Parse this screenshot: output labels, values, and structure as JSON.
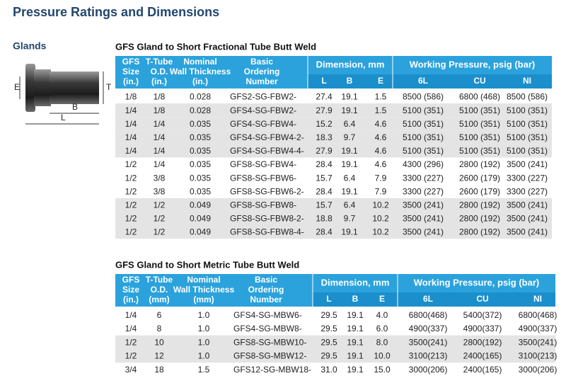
{
  "header": {
    "title": "Pressure Ratings and Dimensions",
    "section": "Glands"
  },
  "diagram": {
    "labels": [
      "E",
      "T",
      "B",
      "L"
    ]
  },
  "tables": [
    {
      "title": "GFS Gland to Short Fractional Tube Butt Weld",
      "columns": [
        [
          "GFS",
          "Size",
          "(in.)"
        ],
        [
          "T-Tube",
          "O.D.",
          "(in.)"
        ],
        [
          "Nominal",
          "Wall Thickness",
          "(in.)"
        ],
        [
          "Basic",
          "Ordering",
          "Number"
        ]
      ],
      "group_headers": [
        "Dimension, mm",
        "Working Pressure, psig (bar)"
      ],
      "sub_headers": [
        "L",
        "B",
        "E",
        "6L",
        "CU",
        "NI"
      ],
      "shaded_rows": [
        1,
        2,
        3,
        4,
        8,
        9,
        10
      ],
      "rows": [
        [
          "1/8",
          "1/8",
          "0.028",
          "GFS2-SG-FBW2-",
          "27.4",
          "19.1",
          "1.5",
          "8500 (586)",
          "6800 (468)",
          "8500 (586)"
        ],
        [
          "1/4",
          "1/8",
          "0.028",
          "GFS4-SG-FBW2-",
          "27.9",
          "19.1",
          "1.5",
          "5100 (351)",
          "5100 (351)",
          "5100 (351)"
        ],
        [
          "1/4",
          "1/4",
          "0.035",
          "GFS4-SG-FBW4-",
          "15.2",
          "6.4",
          "4.6",
          "5100 (351)",
          "5100 (351)",
          "5100 (351)"
        ],
        [
          "1/4",
          "1/4",
          "0.035",
          "GFS4-SG-FBW4-2-",
          "18.3",
          "9.7",
          "4.6",
          "5100 (351)",
          "5100 (351)",
          "5100 (351)"
        ],
        [
          "1/4",
          "1/4",
          "0.035",
          "GFS4-SG-FBW4-4-",
          "27.9",
          "19.1",
          "4.6",
          "5100 (351)",
          "5100 (351)",
          "5100 (351)"
        ],
        [
          "1/2",
          "1/4",
          "0.035",
          "GFS8-SG-FBW4-",
          "28.4",
          "19.1",
          "4.6",
          "4300 (296)",
          "2800 (192)",
          "3500 (241)"
        ],
        [
          "1/2",
          "3/8",
          "0.035",
          "GFS8-SG-FBW6-",
          "15.7",
          "6.4",
          "7.9",
          "3300 (227)",
          "2600 (179)",
          "3300 (227)"
        ],
        [
          "1/2",
          "3/8",
          "0.035",
          "GFS8-SG-FBW6-2-",
          "28.4",
          "19.1",
          "7.9",
          "3300 (227)",
          "2600 (179)",
          "3300 (227)"
        ],
        [
          "1/2",
          "1/2",
          "0.049",
          "GFS8-SG-FBW8-",
          "15.7",
          "6.4",
          "10.2",
          "3500 (241)",
          "2800 (192)",
          "3500 (241)"
        ],
        [
          "1/2",
          "1/2",
          "0.049",
          "GFS8-SG-FBW8-2-",
          "18.8",
          "9.7",
          "10.2",
          "3500 (241)",
          "2800 (192)",
          "3500 (241)"
        ],
        [
          "1/2",
          "1/2",
          "0.049",
          "GFS8-SG-FBW8-4-",
          "28.4",
          "19.1",
          "10.2",
          "3500 (241)",
          "2800 (192)",
          "3500 (241)"
        ]
      ]
    },
    {
      "title": "GFS Gland to Short Metric Tube Butt Weld",
      "columns": [
        [
          "GFS",
          "Size",
          "(in.)"
        ],
        [
          "T-Tube",
          "O.D.",
          "(mm)"
        ],
        [
          "Nominal",
          "Wall Thickness",
          "(mm)"
        ],
        [
          "Basic",
          "Ordering",
          "Number"
        ]
      ],
      "group_headers": [
        "Dimension, mm",
        "Working Pressure, psig (bar)"
      ],
      "sub_headers": [
        "L",
        "B",
        "E",
        "6L",
        "CU",
        "NI"
      ],
      "shaded_rows": [
        2,
        3
      ],
      "rows": [
        [
          "1/4",
          "6",
          "1.0",
          "GFS4-SG-MBW6-",
          "29.5",
          "19.1",
          "4.0",
          "6800(468)",
          "5400(372)",
          "6800(468)"
        ],
        [
          "1/4",
          "8",
          "1.0",
          "GFS4-SG-MBW8-",
          "29.5",
          "19.1",
          "6.0",
          "4900(337)",
          "4900(337)",
          "4900(337)"
        ],
        [
          "1/2",
          "10",
          "1.0",
          "GFS8-SG-MBW10-",
          "29.5",
          "19.1",
          "8.0",
          "3500(241)",
          "2800(192)",
          "3500(241)"
        ],
        [
          "1/2",
          "12",
          "1.0",
          "GFS8-SG-MBW12-",
          "29.5",
          "19.1",
          "10.0",
          "3100(213)",
          "2400(165)",
          "3100(213)"
        ],
        [
          "3/4",
          "18",
          "1.5",
          "GFS12-SG-MBW18-",
          "31.0",
          "19.1",
          "15.0",
          "3000(206)",
          "2400(165)",
          "3000(206)"
        ]
      ]
    }
  ]
}
